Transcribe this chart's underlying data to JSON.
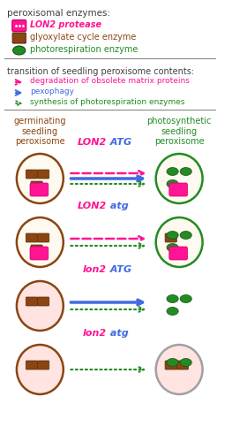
{
  "bg_color": "#ffffff",
  "legend_color": "#404040",
  "lon2_color": "#ff1493",
  "atg_color": "#4169e1",
  "glyoxylate_color": "#8B4513",
  "photo_color": "#228B22",
  "degrad_arrow_color": "#ff1493",
  "pexo_arrow_color": "#4169e1",
  "synth_arrow_color": "#228B22",
  "circle_border_dark": "#8B4513",
  "circle_border_green": "#228B22",
  "circle_fill_white": "#FFFAF0",
  "circle_fill_pink": "#FFE4E1",
  "circle_fill_gray": "#d3d3d3",
  "rows": [
    {
      "label_lon2": "LON2",
      "label_atg": " ATG",
      "label_atg_italic": true,
      "left_circle": {
        "fill": "#FFFAF0",
        "border": "#8B4513",
        "enzymes": {
          "lon2": true,
          "glyox": 3,
          "photo": 0
        }
      },
      "right_circle": {
        "fill": "#FFFAF0",
        "border": "#228B22",
        "enzymes": {
          "lon2": true,
          "glyox": 0,
          "photo": 3
        }
      },
      "arrows": [
        "degrad",
        "pexo",
        "synth"
      ]
    },
    {
      "label_lon2": "LON2",
      "label_atg": " atg",
      "label_atg_italic": true,
      "left_circle": {
        "fill": "#FFFAF0",
        "border": "#8B4513",
        "enzymes": {
          "lon2": true,
          "glyox": 3,
          "photo": 0
        }
      },
      "right_circle": {
        "fill": "#FFFAF0",
        "border": "#228B22",
        "enzymes": {
          "lon2": true,
          "glyox": 1,
          "photo": 3
        }
      },
      "arrows": [
        "degrad",
        "synth"
      ]
    },
    {
      "label_lon2": "lon2",
      "label_atg": " ATG",
      "label_atg_italic": true,
      "left_circle": {
        "fill": "#FFE4E1",
        "border": "#8B4513",
        "enzymes": {
          "lon2": false,
          "glyox": 2,
          "photo": 0
        }
      },
      "right_circle": {
        "fill": "#ffffff",
        "border": "#ffffff",
        "enzymes": {
          "lon2": false,
          "glyox": 0,
          "photo": 3
        }
      },
      "arrows": [
        "pexo",
        "synth"
      ],
      "right_no_circle": true
    },
    {
      "label_lon2": "lon2",
      "label_atg": " atg",
      "label_atg_italic": true,
      "left_circle": {
        "fill": "#FFE4E1",
        "border": "#8B4513",
        "enzymes": {
          "lon2": false,
          "glyox": 2,
          "photo": 0
        }
      },
      "right_circle": {
        "fill": "#FFE4E1",
        "border": "#a0a0a0",
        "enzymes": {
          "lon2": false,
          "glyox": 2,
          "photo": 2
        }
      },
      "arrows": [
        "synth"
      ]
    }
  ]
}
